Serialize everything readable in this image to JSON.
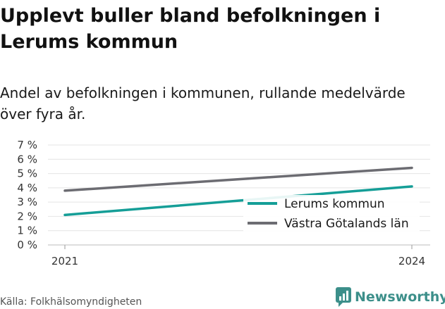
{
  "header": {
    "title": "Upplevt buller bland befolkningen i Lerums kommun",
    "subtitle": "Andel av befolkningen i kommunen, rullande medelvärde över fyra år."
  },
  "footer": {
    "source": "Källa: Folkhälsomyndigheten",
    "brand": "Newsworthy"
  },
  "colors": {
    "lerum": "#159e97",
    "vastra": "#6c6c72",
    "grid": "#e4e4e4",
    "brand": "#3c8f8a"
  },
  "chart_data": {
    "type": "line",
    "x": [
      "2021",
      "2024"
    ],
    "series": [
      {
        "name": "Lerums kommun",
        "values": [
          2.1,
          4.1
        ]
      },
      {
        "name": "Västra Götalands län",
        "values": [
          3.8,
          5.4
        ]
      }
    ],
    "ylim": [
      0,
      7
    ],
    "yticks": [
      "0 %",
      "1 %",
      "2 %",
      "3 %",
      "4 %",
      "5 %",
      "6 %",
      "7 %"
    ],
    "xticks": [
      "2021",
      "2024"
    ],
    "grid": true,
    "legend_position": "bottom-right"
  }
}
